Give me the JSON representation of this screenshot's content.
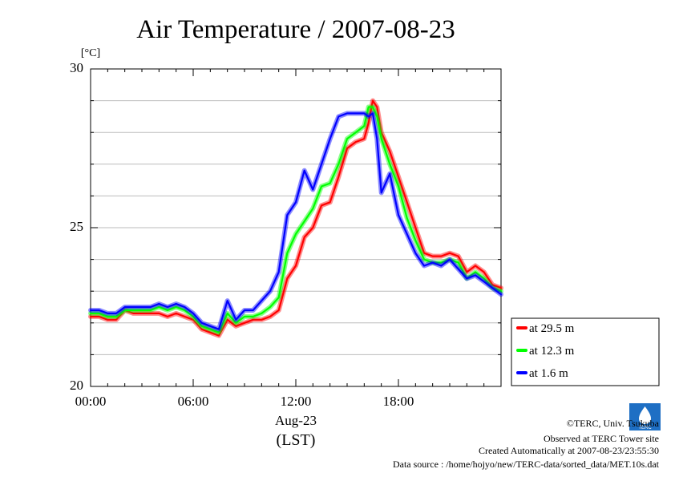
{
  "chart_data": {
    "type": "line",
    "title": "Air Temperature / 2007-08-23",
    "ylabel": "[°C]",
    "xlabel": "Aug-23",
    "xlabel2": "(LST)",
    "x_tick_labels": [
      "00:00",
      "06:00",
      "12:00",
      "18:00"
    ],
    "y_tick_labels": [
      "20",
      "25",
      "30"
    ],
    "xlim": [
      0,
      24
    ],
    "ylim": [
      20,
      30
    ],
    "grid": true,
    "legend_position": "right",
    "series": [
      {
        "name": "at 29.5 m",
        "color": "#ff0000",
        "x": [
          0,
          0.5,
          1,
          1.5,
          2,
          2.5,
          3,
          3.5,
          4,
          4.5,
          5,
          5.5,
          6,
          6.5,
          7,
          7.5,
          8,
          8.5,
          9,
          9.5,
          10,
          10.5,
          11,
          11.25,
          11.5,
          12,
          12.5,
          13,
          13.5,
          14,
          14.5,
          15,
          15.5,
          16,
          16.25,
          16.5,
          16.75,
          17,
          17.5,
          18,
          18.5,
          19,
          19.5,
          20,
          20.5,
          21,
          21.5,
          22,
          22.5,
          23,
          23.5,
          24
        ],
        "values": [
          22.2,
          22.2,
          22.1,
          22.1,
          22.4,
          22.3,
          22.3,
          22.3,
          22.3,
          22.2,
          22.3,
          22.2,
          22.1,
          21.8,
          21.7,
          21.6,
          22.1,
          21.9,
          22.0,
          22.1,
          22.1,
          22.2,
          22.4,
          22.9,
          23.4,
          23.8,
          24.7,
          25.0,
          25.7,
          25.8,
          26.6,
          27.5,
          27.7,
          27.8,
          28.3,
          29.0,
          28.8,
          28.0,
          27.4,
          26.6,
          25.8,
          25.0,
          24.2,
          24.1,
          24.1,
          24.2,
          24.1,
          23.6,
          23.8,
          23.6,
          23.2,
          23.1
        ]
      },
      {
        "name": "at 12.3 m",
        "color": "#00ff00",
        "x": [
          0,
          0.5,
          1,
          1.5,
          2,
          2.5,
          3,
          3.5,
          4,
          4.5,
          5,
          5.5,
          6,
          6.5,
          7,
          7.5,
          8,
          8.5,
          9,
          9.5,
          10,
          10.5,
          11,
          11.25,
          11.5,
          12,
          12.5,
          13,
          13.5,
          14,
          14.5,
          15,
          15.5,
          16,
          16.25,
          16.5,
          16.75,
          17,
          17.5,
          18,
          18.5,
          19,
          19.5,
          20,
          20.5,
          21,
          21.5,
          22,
          22.5,
          23,
          23.5,
          24
        ],
        "values": [
          22.3,
          22.3,
          22.2,
          22.2,
          22.4,
          22.4,
          22.4,
          22.4,
          22.5,
          22.4,
          22.5,
          22.4,
          22.2,
          21.9,
          21.8,
          21.7,
          22.3,
          22.0,
          22.2,
          22.2,
          22.3,
          22.5,
          22.8,
          23.5,
          24.2,
          24.8,
          25.2,
          25.6,
          26.3,
          26.4,
          27.0,
          27.8,
          28.0,
          28.2,
          28.8,
          28.8,
          28.5,
          27.8,
          27.0,
          26.3,
          25.3,
          24.6,
          24.0,
          23.9,
          23.9,
          24.0,
          23.9,
          23.4,
          23.6,
          23.4,
          23.1,
          23.0
        ]
      },
      {
        "name": "at 1.6 m",
        "color": "#0000ff",
        "x": [
          0,
          0.5,
          1,
          1.5,
          2,
          2.5,
          3,
          3.5,
          4,
          4.5,
          5,
          5.5,
          6,
          6.5,
          7,
          7.5,
          8,
          8.5,
          9,
          9.5,
          10,
          10.5,
          11,
          11.25,
          11.5,
          12,
          12.5,
          13,
          13.5,
          14,
          14.5,
          15,
          15.5,
          16,
          16.25,
          16.5,
          16.75,
          17,
          17.5,
          18,
          18.5,
          19,
          19.5,
          20,
          20.5,
          21,
          21.5,
          22,
          22.5,
          23,
          23.5,
          24
        ],
        "values": [
          22.4,
          22.4,
          22.3,
          22.3,
          22.5,
          22.5,
          22.5,
          22.5,
          22.6,
          22.5,
          22.6,
          22.5,
          22.3,
          22.0,
          21.9,
          21.8,
          22.7,
          22.1,
          22.4,
          22.4,
          22.7,
          23.0,
          23.6,
          24.5,
          25.4,
          25.8,
          26.8,
          26.2,
          27.0,
          27.8,
          28.5,
          28.6,
          28.6,
          28.6,
          28.5,
          28.6,
          27.8,
          26.1,
          26.7,
          25.4,
          24.8,
          24.2,
          23.8,
          23.9,
          23.8,
          24.0,
          23.7,
          23.4,
          23.5,
          23.3,
          23.1,
          22.9
        ]
      }
    ]
  },
  "footer": {
    "copyright": "©TERC, Univ. Tsukuba",
    "observed": "Observed at TERC Tower site",
    "created": "Created Automatically at 2007-08-23/23:55:30",
    "source": "Data source : /home/hojyo/new/TERC-data/sorted_data/MET.10s.dat",
    "logo_text": "TERC"
  }
}
